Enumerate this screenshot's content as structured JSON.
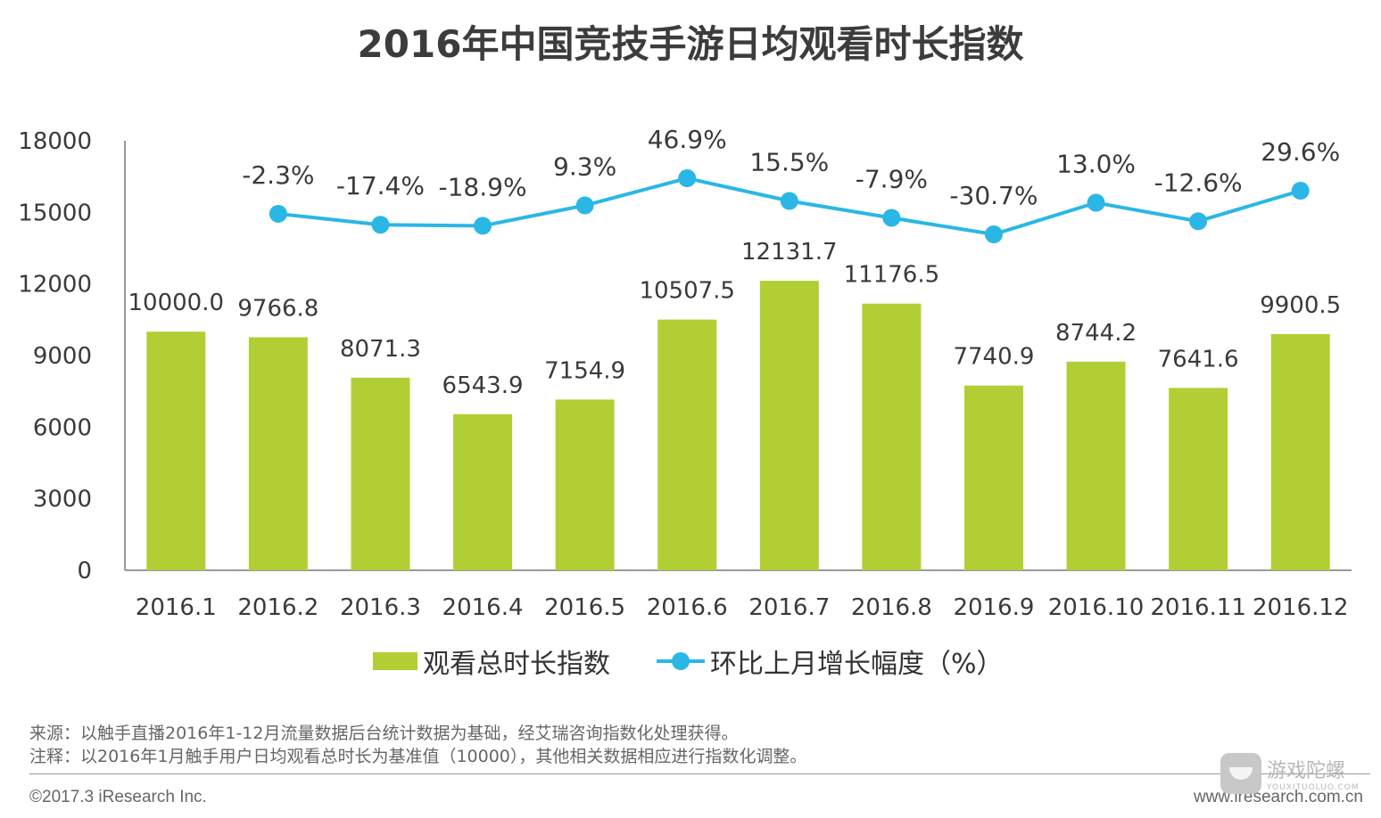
{
  "title": "2016年中国竞技手游日均观看时长指数",
  "chart_data": {
    "type": "bar",
    "title": "2016年中国竞技手游日均观看时长指数",
    "categories": [
      "2016.1",
      "2016.2",
      "2016.3",
      "2016.4",
      "2016.5",
      "2016.6",
      "2016.7",
      "2016.8",
      "2016.9",
      "2016.10",
      "2016.11",
      "2016.12"
    ],
    "series": [
      {
        "name": "观看总时长指数",
        "type": "bar",
        "axis": "left",
        "color": "#b1cf35",
        "values": [
          10000.0,
          9766.8,
          8071.3,
          6543.9,
          7154.9,
          10507.5,
          12131.7,
          11176.5,
          7740.9,
          8744.2,
          7641.6,
          9900.5
        ],
        "labels": [
          "10000.0",
          "9766.8",
          "8071.3",
          "6543.9",
          "7154.9",
          "10507.5",
          "12131.7",
          "11176.5",
          "7740.9",
          "8744.2",
          "7641.6",
          "9900.5"
        ]
      },
      {
        "name": "环比上月增长幅度（%）",
        "type": "line",
        "axis": "right-hidden",
        "color": "#2ab7e6",
        "values": [
          null,
          -2.3,
          -17.4,
          -18.9,
          9.3,
          46.9,
          15.5,
          -7.9,
          -30.7,
          13.0,
          -12.6,
          29.6
        ],
        "labels": [
          "",
          "-2.3%",
          "-17.4%",
          "-18.9%",
          "9.3%",
          "46.9%",
          "15.5%",
          "-7.9%",
          "-30.7%",
          "13.0%",
          "-12.6%",
          "29.6%"
        ]
      }
    ],
    "y_ticks": [
      "0",
      "3000",
      "6000",
      "9000",
      "12000",
      "15000",
      "18000"
    ],
    "ylim": [
      0,
      18000
    ],
    "grid": false,
    "legend_position": "bottom"
  },
  "legend": {
    "bar_label": "观看总时长指数",
    "line_label": "环比上月增长幅度（%）"
  },
  "notes": {
    "source": "来源：以触手直播2016年1-12月流量数据后台统计数据为基础，经艾瑞咨询指数化处理获得。",
    "remark": "注释：以2016年1月触手用户日均观看总时长为基准值（10000），其他相关数据相应进行指数化调整。"
  },
  "footer": {
    "copyright": "©2017.3 iResearch Inc.",
    "website": "www.iresearch.com.cn"
  },
  "watermark": {
    "main": "游戏陀螺",
    "sub": "YOUXITUOLUO.COM"
  }
}
